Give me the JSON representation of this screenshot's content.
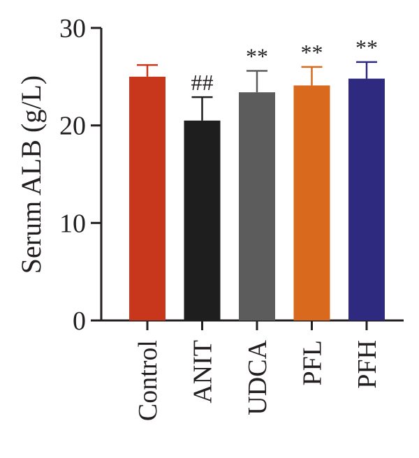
{
  "chart_data": {
    "type": "bar",
    "categories": [
      "Control",
      "ANIT",
      "UDCA",
      "PFL",
      "PFH"
    ],
    "values": [
      25.0,
      20.5,
      23.4,
      24.1,
      24.8
    ],
    "errors": [
      1.2,
      2.4,
      2.2,
      1.9,
      1.7
    ],
    "colors": [
      "#c8361b",
      "#1e1e1e",
      "#5c5c5c",
      "#d9691c",
      "#2e2a7f"
    ],
    "annotations": [
      "",
      "##",
      "**",
      "**",
      "**"
    ],
    "ylabel": "Serum ALB (g/L)",
    "xlabel": "",
    "title": "",
    "ylim": [
      0,
      30
    ],
    "yticks": [
      "0",
      "10",
      "20",
      "30"
    ],
    "grid": false
  }
}
